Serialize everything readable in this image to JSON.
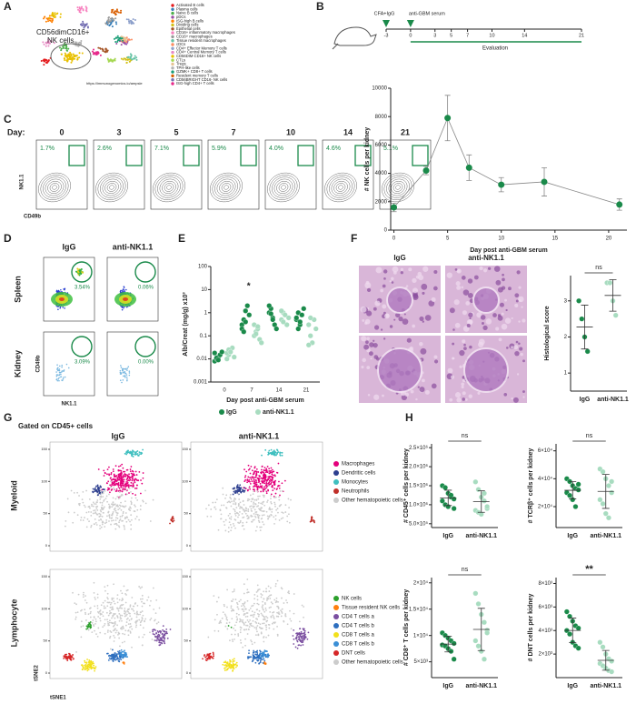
{
  "panels": {
    "A": {
      "label": "A",
      "nk_label": [
        "CD56dimCD16+",
        "NK cells"
      ],
      "url": "https://immunogenomics.io/ampsle",
      "legend": [
        {
          "name": "Activated B cells",
          "color": "#e41a1c"
        },
        {
          "name": "Plasma cells",
          "color": "#377eb8"
        },
        {
          "name": "Naive B cells",
          "color": "#4daf4a"
        },
        {
          "name": "pDCs",
          "color": "#984ea3"
        },
        {
          "name": "ISG-high B cells",
          "color": "#ff7f00"
        },
        {
          "name": "Dividing cells",
          "color": "#d4c21a"
        },
        {
          "name": "Epithelial cells",
          "color": "#a65628"
        },
        {
          "name": "CD16+ inflammatory macrophages",
          "color": "#f781bf"
        },
        {
          "name": "CD16+ macrophages",
          "color": "#999999"
        },
        {
          "name": "Tissue resident macrophages",
          "color": "#66c2a5"
        },
        {
          "name": "cDCs",
          "color": "#fc8d62"
        },
        {
          "name": "CD4+ Effector Memory T cells",
          "color": "#8da0cb"
        },
        {
          "name": "CD4+ Central Memory T cells",
          "color": "#e78ac3"
        },
        {
          "name": "CD56DIM CD16+ NK cells",
          "color": "#e8c000"
        },
        {
          "name": "CTLs",
          "color": "#a6d854"
        },
        {
          "name": "Tregs",
          "color": "#e5c494"
        },
        {
          "name": "TPH-like cells",
          "color": "#b3b3b3"
        },
        {
          "name": "GZMK+ CD8+ T cells",
          "color": "#1b9e77"
        },
        {
          "name": "Resident memory T cells",
          "color": "#d95f02"
        },
        {
          "name": "CD56BRIGHT CD16- NK cells",
          "color": "#7570b3"
        },
        {
          "name": "ISG-high CD4+ T cells",
          "color": "#e7298a"
        }
      ]
    },
    "B": {
      "label": "B",
      "timeline_labels": [
        "CFA+IgG",
        "anti-GBM serum"
      ],
      "days": [
        -3,
        0,
        3,
        5,
        7,
        10,
        14,
        21
      ],
      "evaluation": "Evaluation"
    },
    "C": {
      "label": "C",
      "day_label": "Day:",
      "days": [
        0,
        3,
        5,
        7,
        10,
        14,
        21
      ],
      "percents": [
        "1.7%",
        "2.6%",
        "7.1%",
        "5.9%",
        "4.0%",
        "4.6%",
        "5.1%"
      ],
      "y_axis": "NK1.1",
      "x_axis": "CD49b"
    },
    "D": {
      "label": "D",
      "columns": [
        "IgG",
        "anti-NK1.1"
      ],
      "rows": [
        "Spleen",
        "Kidney"
      ],
      "percents": [
        [
          "3.54%",
          "0.06%"
        ],
        [
          "3.09%",
          "0.00%"
        ]
      ],
      "x_axis": "NK1.1",
      "y_axis": "CD49b"
    },
    "E": {
      "label": "E"
    },
    "F": {
      "label": "F",
      "columns": [
        "IgG",
        "anti-NK1.1"
      ]
    },
    "G": {
      "label": "G",
      "gate": "Gated on CD45+ cells",
      "columns": [
        "IgG",
        "anti-NK1.1"
      ],
      "rows": [
        "Myeloid",
        "Lymphocyte"
      ],
      "ticks": [
        0,
        50,
        100,
        150
      ],
      "x_axis": "tSNE1",
      "y_axis": "tSNE2",
      "legends": [
        [
          {
            "name": "Macrophages",
            "color": "#e4007c"
          },
          {
            "name": "Dendritic cells",
            "color": "#2d3f8f"
          },
          {
            "name": "Monocytes",
            "color": "#3fbfbf"
          },
          {
            "name": "Neutrophils",
            "color": "#c0302a"
          },
          {
            "name": "Other hematopoietic cells",
            "color": "#cccccc"
          }
        ],
        [
          {
            "name": "NK cells",
            "color": "#2ca02c"
          },
          {
            "name": "Tissue resident NK cells",
            "color": "#ff7f0e"
          },
          {
            "name": "CD4 T cells a",
            "color": "#7b4fa0"
          },
          {
            "name": "CD4 T cells b",
            "color": "#2e6fbf"
          },
          {
            "name": "CD8 T cells a",
            "color": "#f2e01b"
          },
          {
            "name": "CD8 T cells b",
            "color": "#3b8fd6"
          },
          {
            "name": "DNT cells",
            "color": "#d62728"
          },
          {
            "name": "Other hematopoietic cells",
            "color": "#cccccc"
          }
        ]
      ]
    },
    "H": {
      "label": "H"
    }
  },
  "chart_data": [
    {
      "type": "line",
      "xlabel": "Day post anti-GBM serum",
      "ylabel": "# NK cells per kidney",
      "color": "#1a8a4a",
      "x": [
        0,
        3,
        5,
        7,
        10,
        14,
        21
      ],
      "values": [
        1600,
        4200,
        7900,
        4400,
        3200,
        3400,
        1800
      ],
      "errors": [
        300,
        300,
        1600,
        900,
        500,
        1000,
        400
      ],
      "xlim": [
        -0.3,
        21.7
      ],
      "xticks": [
        0,
        5,
        10,
        15,
        20
      ],
      "ylim": [
        0,
        10000
      ],
      "yticks": [
        0,
        2000,
        4000,
        6000,
        8000,
        10000
      ]
    },
    {
      "type": "strip",
      "log": true,
      "xlabel": "Day post anti-GBM serum",
      "ylabel": "Alb/Creat  (mg/g) x10³",
      "annotation": "*",
      "categories": [
        "0",
        "7",
        "14",
        "21"
      ],
      "ylim": [
        0.001,
        100
      ],
      "yticks": [
        0.001,
        0.01,
        0.1,
        1,
        10,
        100
      ],
      "series": [
        {
          "name": "IgG",
          "color": "#1a8a4a",
          "values": [
            [
              0.008,
              0.01,
              0.012,
              0.015,
              0.02,
              0.018,
              0.011,
              0.009
            ],
            [
              0.3,
              0.5,
              1.2,
              2,
              0.8,
              0.2,
              0.15,
              0.4
            ],
            [
              1,
              1.5,
              0.6,
              0.3,
              0.2,
              2,
              0.9,
              0.5
            ],
            [
              0.5,
              1,
              0.3,
              0.8,
              1.5,
              0.6,
              0.2,
              0.4
            ]
          ]
        },
        {
          "name": "anti-NK1.1",
          "color": "#a8dcc0",
          "values": [
            [
              0.01,
              0.015,
              0.02,
              0.03,
              0.012,
              0.018,
              0.025,
              0.02
            ],
            [
              0.1,
              0.15,
              0.2,
              0.07,
              0.05,
              0.3,
              0.12,
              0.25
            ],
            [
              0.5,
              1,
              0.8,
              0.3,
              0.6,
              1.2,
              0.4
            ],
            [
              0.3,
              0.1,
              0.05,
              0.5,
              0.2,
              0.04,
              0.6
            ]
          ]
        }
      ]
    },
    {
      "type": "strip",
      "ylabel": "Histological score",
      "annotation": "ns",
      "categories": [
        "IgG",
        "anti-NK1.1"
      ],
      "colors": [
        "#1a8a4a",
        "#a8dcc0"
      ],
      "values": [
        [
          3.0,
          2.5,
          2.0,
          1.6
        ],
        [
          3.5,
          3.5,
          3.0,
          2.6
        ]
      ],
      "ylim": [
        0.5,
        3.7
      ],
      "yticks": [
        1,
        2,
        3
      ]
    },
    {
      "type": "strip",
      "ylabel": "# CD45⁺ cells per kidney",
      "annotation": "ns",
      "categories": [
        "IgG",
        "anti-NK1.1"
      ],
      "colors": [
        "#1a8a4a",
        "#a8dcc0"
      ],
      "values": [
        [
          1500000,
          1450000,
          1300000,
          1200000,
          1150000,
          1100000,
          1000000,
          950000,
          1250000,
          900000
        ],
        [
          1600000,
          1400000,
          1200000,
          1100000,
          900000,
          850000,
          800000,
          750000,
          1300000,
          950000
        ]
      ],
      "ylim": [
        400000,
        2600000
      ],
      "yticks": [
        {
          "value": 500000,
          "label": "5.0×10⁵"
        },
        {
          "value": 1000000,
          "label": "1.0×10⁶"
        },
        {
          "value": 1500000,
          "label": "1.5×10⁶"
        },
        {
          "value": 2000000,
          "label": "2.0×10⁶"
        },
        {
          "value": 2500000,
          "label": "2.5×10⁶"
        }
      ]
    },
    {
      "type": "strip",
      "ylabel": "# TCRβ⁺ cells per kidney",
      "annotation": "ns",
      "categories": [
        "IgG",
        "anti-NK1.1"
      ],
      "colors": [
        "#1a8a4a",
        "#a8dcc0"
      ],
      "values": [
        [
          40000,
          38000,
          35000,
          33000,
          32000,
          30000,
          28000,
          25000,
          20000,
          36000
        ],
        [
          47000,
          45000,
          40000,
          35000,
          30000,
          25000,
          22000,
          15000,
          12000,
          38000
        ]
      ],
      "ylim": [
        5000,
        65000
      ],
      "yticks": [
        {
          "value": 20000,
          "label": "2×10⁴"
        },
        {
          "value": 40000,
          "label": "4×10⁴"
        },
        {
          "value": 60000,
          "label": "6×10⁴"
        }
      ]
    },
    {
      "type": "strip",
      "ylabel": "# CD8⁺ T cells per kidney",
      "annotation": "ns",
      "categories": [
        "IgG",
        "anti-NK1.1"
      ],
      "colors": [
        "#1a8a4a",
        "#a8dcc0"
      ],
      "values": [
        [
          10500,
          10000,
          9500,
          9000,
          8500,
          8200,
          8000,
          7500,
          7000,
          5500
        ],
        [
          18000,
          16000,
          14000,
          12500,
          11000,
          9000,
          8000,
          7000,
          5500,
          10500
        ]
      ],
      "ylim": [
        2000,
        21000
      ],
      "yticks": [
        {
          "value": 5000,
          "label": "5×10³"
        },
        {
          "value": 10000,
          "label": "1×10⁴"
        },
        {
          "value": 15000,
          "label": "1.5×10⁴"
        },
        {
          "value": 20000,
          "label": "2×10⁴"
        }
      ]
    },
    {
      "type": "strip",
      "ylabel": "# DNT cells per kidney",
      "annotation": "**",
      "categories": [
        "IgG",
        "anti-NK1.1"
      ],
      "colors": [
        "#1a8a4a",
        "#a8dcc0"
      ],
      "values": [
        [
          5600,
          5200,
          4800,
          4400,
          4200,
          4000,
          3700,
          3000,
          2700,
          2500
        ],
        [
          3000,
          2600,
          2000,
          1600,
          1400,
          1200,
          1000,
          800,
          600,
          500
        ]
      ],
      "ylim": [
        0,
        8500
      ],
      "yticks": [
        {
          "value": 2000,
          "label": "2×10³"
        },
        {
          "value": 4000,
          "label": "4×10³"
        },
        {
          "value": 6000,
          "label": "6×10³"
        },
        {
          "value": 8000,
          "label": "8×10³"
        }
      ]
    }
  ]
}
